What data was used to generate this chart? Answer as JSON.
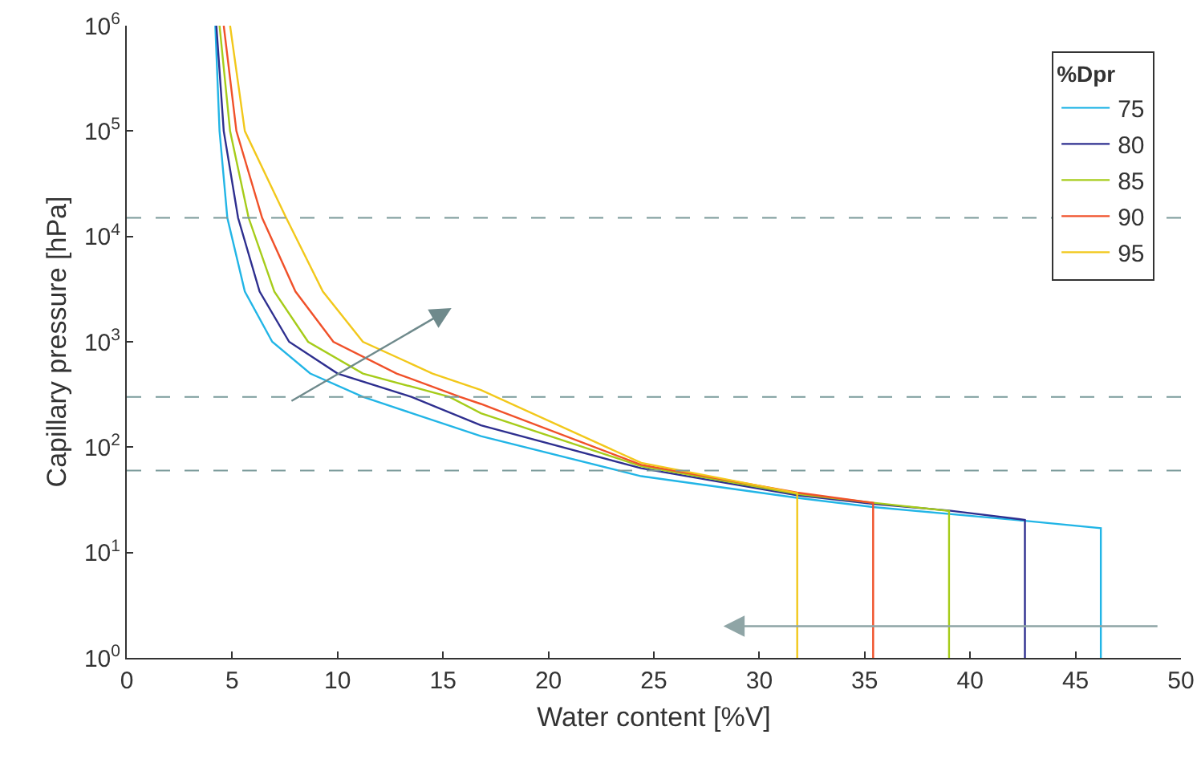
{
  "chart_data": {
    "type": "line",
    "xlabel": "Water content [%V]",
    "ylabel": "Capillary pressure [hPa]",
    "legend_title": "%Dpr",
    "legend": "top right",
    "grid": false,
    "log": "y",
    "line_style": "solid",
    "marker": "none",
    "xlim": [
      0,
      50
    ],
    "xticks": [
      0,
      5,
      10,
      15,
      20,
      25,
      30,
      35,
      40,
      45,
      50
    ],
    "ylim": [
      1,
      1000000
    ],
    "yticks": [
      {
        "value": 1,
        "label": "10$^{0}$"
      },
      {
        "value": 10,
        "label": "10$^{1}$"
      },
      {
        "value": 100,
        "label": "10$^{2}$"
      },
      {
        "value": 1000,
        "label": "10$^{3}$"
      },
      {
        "value": 10000,
        "label": "10$^{4}$"
      },
      {
        "value": 100000,
        "label": "10$^{5}$"
      },
      {
        "value": 1000000,
        "label": "10$^{6}$"
      }
    ],
    "series": [
      {
        "name": "75",
        "color": "#22b5e6",
        "x": [
          4.2,
          4.4,
          4.77,
          5.6,
          6.9,
          8.7,
          11.2,
          16.8,
          24.4,
          31.8,
          35.4,
          42.6,
          46.2,
          46.2
        ],
        "values": [
          1000000,
          100000,
          15000,
          3000,
          1000,
          500,
          300,
          127,
          53,
          33,
          27,
          20,
          17,
          1
        ]
      },
      {
        "name": "80",
        "color": "#2e2f8f",
        "x": [
          4.25,
          4.6,
          5.28,
          6.3,
          7.7,
          10.0,
          13.5,
          16.8,
          24.4,
          31.8,
          35.4,
          39.0,
          42.6,
          42.6
        ],
        "values": [
          1000000,
          100000,
          15000,
          3000,
          1000,
          500,
          300,
          161,
          63,
          35,
          29,
          25,
          20.4,
          1
        ]
      },
      {
        "name": "85",
        "color": "#a6cc1a",
        "x": [
          4.4,
          4.9,
          5.78,
          7.0,
          8.6,
          11.2,
          15.3,
          16.8,
          24.4,
          31.8,
          35.4,
          39.0,
          39.0
        ],
        "values": [
          1000000,
          100000,
          15000,
          3000,
          1000,
          500,
          300,
          210,
          66,
          36,
          29.7,
          24.8,
          1
        ]
      },
      {
        "name": "90",
        "color": "#f0512a",
        "x": [
          4.6,
          5.2,
          6.42,
          8.0,
          9.8,
          12.8,
          15.8,
          16.8,
          24.4,
          31.8,
          35.4,
          35.4
        ],
        "values": [
          1000000,
          100000,
          15000,
          3000,
          1000,
          500,
          300,
          257,
          68,
          37,
          29.6,
          1
        ]
      },
      {
        "name": "95",
        "color": "#f2c81b",
        "x": [
          4.9,
          5.6,
          7.56,
          9.3,
          11.2,
          14.5,
          16.8,
          24.4,
          31.8,
          31.8
        ],
        "values": [
          1000000,
          100000,
          15000,
          3000,
          1000,
          500,
          348,
          71,
          36.6,
          1
        ]
      }
    ],
    "ref_lines": [
      {
        "axis": "y",
        "value": 15000,
        "color": "#7a9a9a",
        "line_style": "dashed"
      },
      {
        "axis": "y",
        "value": 300,
        "color": "#7a9a9a",
        "line_style": "dashed"
      },
      {
        "axis": "y",
        "value": 60,
        "color": "#7a9a9a",
        "line_style": "dashed"
      }
    ]
  }
}
